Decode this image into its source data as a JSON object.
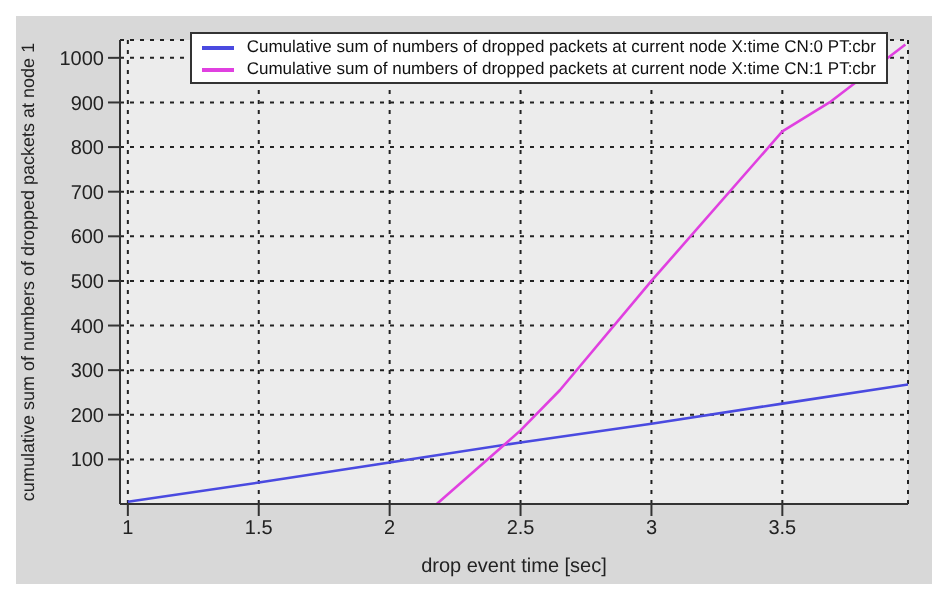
{
  "chart_data": {
    "type": "line",
    "xlabel": "drop event time [sec]",
    "ylabel": "cumulative sum of numbers of dropped packets at node 1",
    "xlim": [
      0.97,
      3.98
    ],
    "xticks": [
      1,
      1.5,
      2,
      2.5,
      3,
      3.5
    ],
    "ylim": [
      0,
      1040
    ],
    "yticks": [
      100,
      200,
      300,
      400,
      500,
      600,
      700,
      800,
      900,
      1000
    ],
    "grid": true,
    "legend": "top right",
    "marker": "none",
    "line_style": "solid",
    "series": [
      {
        "name": "Cumulative sum of numbers of dropped packets at current node X:time CN:0 PT:cbr",
        "color": "#4a4ae0",
        "x": [
          1,
          1.5,
          2,
          2.5,
          3,
          3.5,
          3.98
        ],
        "values": [
          5,
          48,
          93,
          138,
          180,
          225,
          268
        ]
      },
      {
        "name": "Cumulative sum of numbers of dropped packets at current node X:time CN:1 PT:cbr",
        "color": "#e040e0",
        "x": [
          2.18,
          2.5,
          2.65,
          3,
          3.5,
          3.68,
          3.97
        ],
        "values": [
          0,
          165,
          255,
          500,
          835,
          900,
          1030
        ]
      }
    ]
  }
}
